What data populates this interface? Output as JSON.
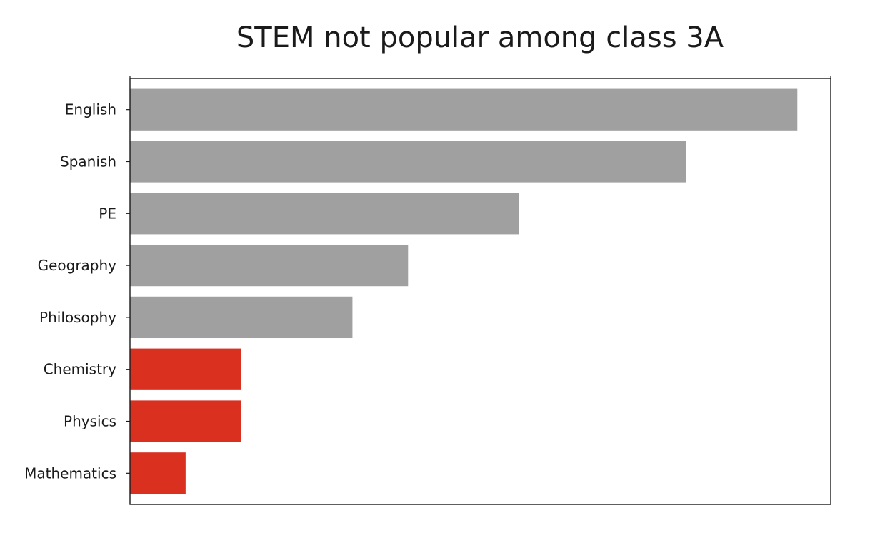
{
  "chart_data": {
    "type": "bar",
    "orientation": "horizontal",
    "title": "STEM not popular among class 3A",
    "xlabel": "",
    "ylabel": "",
    "x_ticks_shown": false,
    "grid": false,
    "categories": [
      "English",
      "Spanish",
      "PE",
      "Geography",
      "Philosophy",
      "Chemistry",
      "Physics",
      "Mathematics"
    ],
    "values": [
      12,
      10,
      7,
      5,
      4,
      2,
      2,
      1
    ],
    "stem": [
      false,
      false,
      false,
      false,
      false,
      true,
      true,
      true
    ],
    "xlim": [
      0,
      12.6
    ],
    "colors": {
      "default": "#a0a0a0",
      "highlight": "#d93020"
    }
  }
}
